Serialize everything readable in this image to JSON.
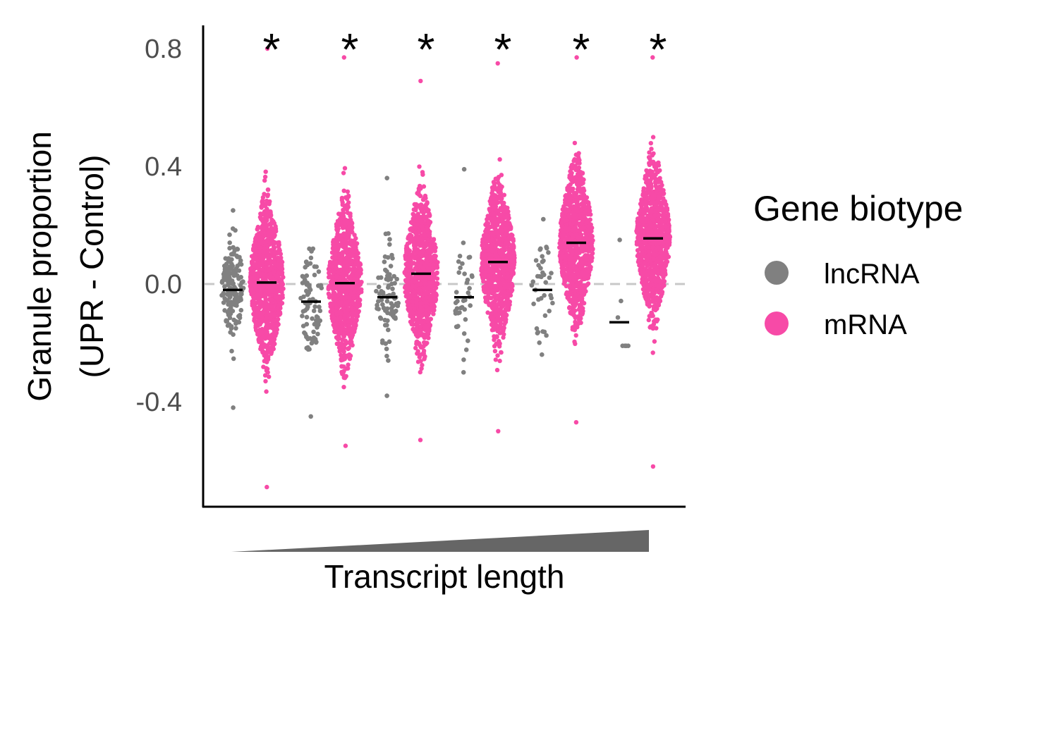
{
  "chart_data": {
    "type": "scatter",
    "subtype": "beeswarm",
    "title": "",
    "xlabel": "Transcript length",
    "ylabel_line1": "Granule proportion",
    "ylabel_line2": "(UPR - Control)",
    "ylim": [
      -0.75,
      0.87
    ],
    "yticks": [
      0.8,
      0.4,
      0.0,
      -0.4
    ],
    "ytick_labels": [
      "0.8",
      "0.4",
      "0.0",
      "-0.4"
    ],
    "reference_line": {
      "y": 0.0,
      "style": "dashed",
      "color": "#c8c8c8"
    },
    "legend": {
      "title": "Gene biotype",
      "position": "right",
      "entries": [
        {
          "label": "lncRNA",
          "color": "#808080"
        },
        {
          "label": "mRNA",
          "color": "#f74aa7"
        }
      ]
    },
    "x_indicator": "increasing transcript length wedge",
    "groups": [
      {
        "bin": 1,
        "biotype": "lncRNA",
        "median": -0.02,
        "min": -0.42,
        "max": 0.25,
        "density": "medium"
      },
      {
        "bin": 1,
        "biotype": "mRNA",
        "median": 0.005,
        "min": -0.69,
        "max": 0.8,
        "density": "high",
        "significance": "*"
      },
      {
        "bin": 2,
        "biotype": "lncRNA",
        "median": -0.06,
        "min": -0.45,
        "max": 0.12,
        "density": "low"
      },
      {
        "bin": 2,
        "biotype": "mRNA",
        "median": 0.003,
        "min": -0.55,
        "max": 0.77,
        "density": "high",
        "significance": "*"
      },
      {
        "bin": 3,
        "biotype": "lncRNA",
        "median": -0.045,
        "min": -0.38,
        "max": 0.36,
        "density": "low"
      },
      {
        "bin": 3,
        "biotype": "mRNA",
        "median": 0.035,
        "min": -0.53,
        "max": 0.69,
        "density": "high",
        "significance": "*"
      },
      {
        "bin": 4,
        "biotype": "lncRNA",
        "median": -0.045,
        "min": -0.3,
        "max": 0.39,
        "density": "sparse"
      },
      {
        "bin": 4,
        "biotype": "mRNA",
        "median": 0.075,
        "min": -0.5,
        "max": 0.75,
        "density": "high",
        "significance": "*"
      },
      {
        "bin": 5,
        "biotype": "lncRNA",
        "median": -0.02,
        "min": -0.24,
        "max": 0.22,
        "density": "sparse"
      },
      {
        "bin": 5,
        "biotype": "mRNA",
        "median": 0.14,
        "min": -0.47,
        "max": 0.77,
        "density": "high",
        "significance": "*"
      },
      {
        "bin": 6,
        "biotype": "lncRNA",
        "median": -0.13,
        "min": -0.21,
        "max": 0.15,
        "density": "very-sparse"
      },
      {
        "bin": 6,
        "biotype": "mRNA",
        "median": 0.155,
        "min": -0.62,
        "max": 0.77,
        "density": "high",
        "significance": "*"
      }
    ]
  }
}
